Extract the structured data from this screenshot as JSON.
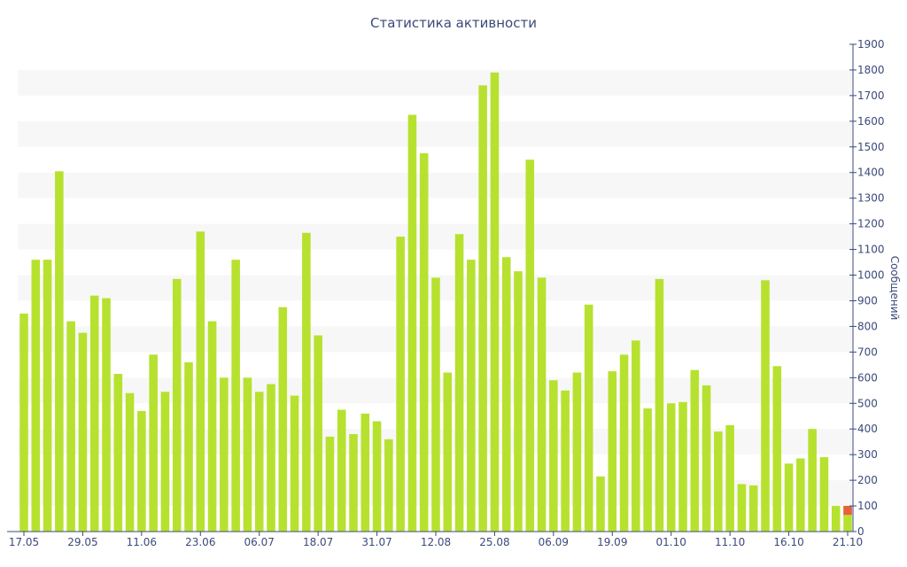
{
  "chart_data": {
    "type": "bar",
    "title": "Статистика активности",
    "ylabel": "Сообщений",
    "xlabel": "",
    "ylim": [
      0,
      1900
    ],
    "y_axis_position": "right",
    "yticks": [
      0,
      100,
      200,
      300,
      400,
      500,
      600,
      700,
      800,
      900,
      1000,
      1100,
      1200,
      1300,
      1400,
      1500,
      1600,
      1700,
      1800,
      1900
    ],
    "xtick_labels": [
      {
        "label": "17.05",
        "index": 0
      },
      {
        "label": "29.05",
        "index": 5
      },
      {
        "label": "11.06",
        "index": 10
      },
      {
        "label": "23.06",
        "index": 15
      },
      {
        "label": "06.07",
        "index": 20
      },
      {
        "label": "18.07",
        "index": 25
      },
      {
        "label": "31.07",
        "index": 30
      },
      {
        "label": "12.08",
        "index": 35
      },
      {
        "label": "25.08",
        "index": 40
      },
      {
        "label": "06.09",
        "index": 45
      },
      {
        "label": "19.09",
        "index": 50
      },
      {
        "label": "01.10",
        "index": 55
      },
      {
        "label": "11.10",
        "index": 60
      },
      {
        "label": "16.10",
        "index": 65
      },
      {
        "label": "21.10",
        "index": 70
      }
    ],
    "grid": "alternating horizontal bands",
    "colors": {
      "bar": "#b7e12f",
      "highlight": "#e8603c",
      "band": "#f7f7f7",
      "axis": "#3b4a7a"
    },
    "values": [
      850,
      1060,
      1060,
      1405,
      820,
      775,
      920,
      910,
      615,
      540,
      470,
      690,
      545,
      985,
      660,
      1170,
      820,
      600,
      1060,
      600,
      545,
      575,
      875,
      530,
      1165,
      765,
      370,
      475,
      380,
      460,
      430,
      360,
      1150,
      1625,
      1475,
      990,
      620,
      1160,
      1060,
      1740,
      1790,
      1070,
      1015,
      1450,
      990,
      590,
      550,
      620,
      885,
      215,
      625,
      690,
      745,
      480,
      985,
      500,
      505,
      630,
      570,
      390,
      415,
      185,
      180,
      980,
      645,
      265,
      285,
      400,
      290,
      100,
      100
    ],
    "last_bar_highlight_value": 35
  }
}
